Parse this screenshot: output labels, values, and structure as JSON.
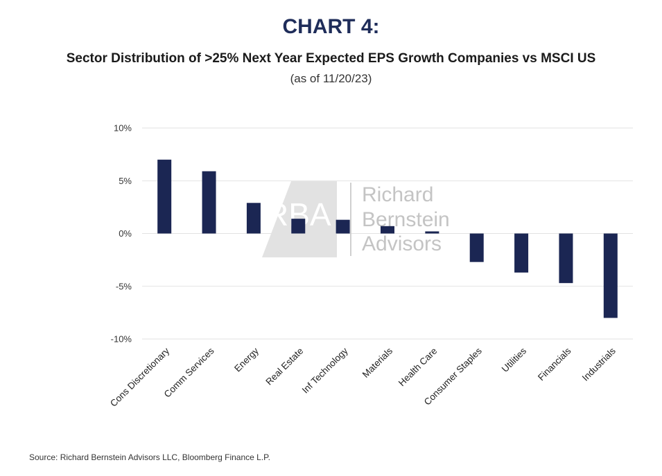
{
  "colors": {
    "heading": "#1f2d5a",
    "bar": "#1b2653",
    "grid": "#e2e2e2",
    "watermark": "#c4c4c4"
  },
  "heading": "CHART 4:",
  "subtitle": "Sector Distribution of >25% Next Year Expected EPS Growth Companies vs MSCI US",
  "as_of": "(as of 11/20/23)",
  "source": "Source: Richard Bernstein Advisors LLC, Bloomberg Finance L.P.",
  "watermark": {
    "logo_text": "RBA",
    "lines": [
      "Richard",
      "Bernstein",
      "Advisors"
    ]
  },
  "chart_data": {
    "type": "bar",
    "categories": [
      "Cons Discretionary",
      "Comm Services",
      "Energy",
      "Real Estate",
      "Inf Technology",
      "Materials",
      "Health Care",
      "Consumer Staples",
      "Utilities",
      "Financials",
      "Industrials"
    ],
    "values": [
      7.0,
      5.9,
      2.9,
      1.4,
      1.3,
      0.7,
      0.2,
      -2.7,
      -3.7,
      -4.7,
      -8.0
    ],
    "ylim": [
      -10,
      10
    ],
    "yticks": [
      10,
      5,
      0,
      -5,
      -10
    ],
    "ytick_labels": [
      "10%",
      "5%",
      "0%",
      "-5%",
      "-10%"
    ],
    "grid": true,
    "xlabel": "",
    "ylabel": ""
  }
}
